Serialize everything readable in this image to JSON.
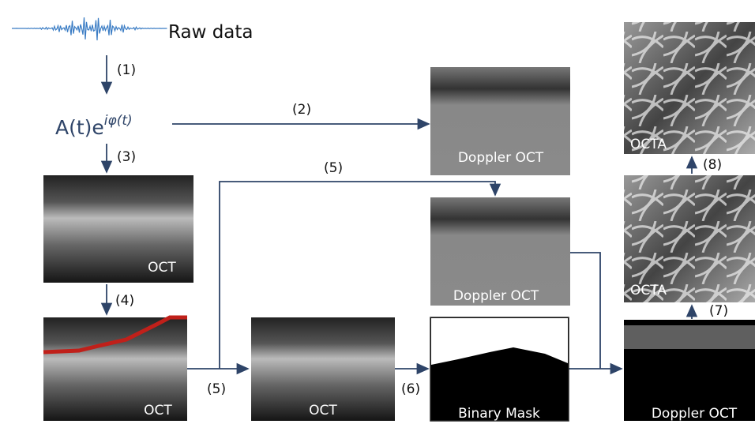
{
  "raw_data": {
    "label": "Raw data"
  },
  "formula": {
    "base": "A(t)e",
    "exponent": "iφ(t)"
  },
  "steps": [
    "(1)",
    "(2)",
    "(3)",
    "(4)",
    "(5)",
    "(5)",
    "(6)",
    "(7)",
    "(8)"
  ],
  "panels": [
    {
      "label": "OCT"
    },
    {
      "label": "OCT"
    },
    {
      "label": "OCT"
    },
    {
      "label": "Doppler OCT"
    },
    {
      "label": "Doppler OCT"
    },
    {
      "label": "Binary Mask"
    },
    {
      "label": "Doppler OCT"
    },
    {
      "label": "OCTA"
    },
    {
      "label": "OCTA"
    }
  ]
}
